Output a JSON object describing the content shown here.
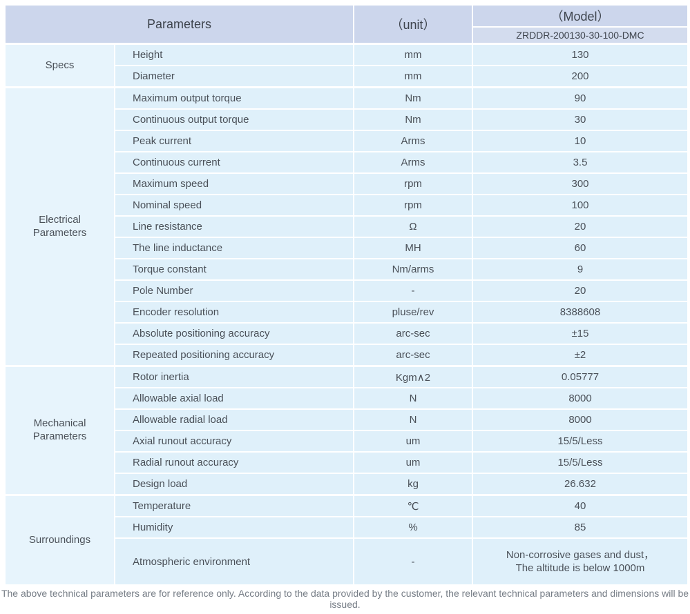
{
  "header": {
    "parameters_label": "Parameters",
    "unit_label": "（unit）",
    "model_label": "（Model）",
    "model_value": "ZRDDR-200130-30-100-DMC"
  },
  "sections": [
    {
      "group": "Specs",
      "rows": [
        {
          "parameter": "Height",
          "unit": "mm",
          "value": "130"
        },
        {
          "parameter": "Diameter",
          "unit": "mm",
          "value": "200"
        }
      ]
    },
    {
      "group": "Electrical Parameters",
      "rows": [
        {
          "parameter": "Maximum output torque",
          "unit": "Nm",
          "value": "90"
        },
        {
          "parameter": "Continuous output torque",
          "unit": "Nm",
          "value": "30"
        },
        {
          "parameter": "Peak current",
          "unit": "Arms",
          "value": "10"
        },
        {
          "parameter": "Continuous current",
          "unit": "Arms",
          "value": "3.5"
        },
        {
          "parameter": "Maximum speed",
          "unit": "rpm",
          "value": "300"
        },
        {
          "parameter": "Nominal speed",
          "unit": "rpm",
          "value": "100"
        },
        {
          "parameter": "Line resistance",
          "unit": "Ω",
          "value": "20"
        },
        {
          "parameter": "The line inductance",
          "unit": "MH",
          "value": "60"
        },
        {
          "parameter": "Torque constant",
          "unit": "Nm/arms",
          "value": "9"
        },
        {
          "parameter": "Pole Number",
          "unit": "-",
          "value": "20"
        },
        {
          "parameter": "Encoder resolution",
          "unit": "pluse/rev",
          "value": "8388608"
        },
        {
          "parameter": "Absolute positioning accuracy",
          "unit": "arc-sec",
          "value": "±15"
        },
        {
          "parameter": "Repeated positioning accuracy",
          "unit": "arc-sec",
          "value": "±2"
        }
      ]
    },
    {
      "group": "Mechanical Parameters",
      "rows": [
        {
          "parameter": "Rotor inertia",
          "unit": "Kgm∧2",
          "value": "0.05777"
        },
        {
          "parameter": "Allowable axial load",
          "unit": "N",
          "value": "8000"
        },
        {
          "parameter": "Allowable radial load",
          "unit": "N",
          "value": "8000"
        },
        {
          "parameter": "Axial runout accuracy",
          "unit": "um",
          "value": "15/5/Less"
        },
        {
          "parameter": "Radial runout accuracy",
          "unit": "um",
          "value": "15/5/Less"
        },
        {
          "parameter": "Design load",
          "unit": "kg",
          "value": "26.632"
        }
      ]
    },
    {
      "group": "Surroundings",
      "rows": [
        {
          "parameter": "Temperature",
          "unit": "℃",
          "value": "40"
        },
        {
          "parameter": "Humidity",
          "unit": "%",
          "value": "85"
        },
        {
          "parameter": "Atmospheric environment",
          "unit": "-",
          "value": "Non-corrosive gases and dust，\nThe altitude is below 1000m",
          "tall": true
        }
      ]
    }
  ],
  "footer": {
    "note": "The above technical parameters are for reference only. According to the data provided by the customer, the relevant technical parameters and dimensions will be issued."
  },
  "colors": {
    "header_bg": "#ccd6ec",
    "model_row_bg": "#d3dcee",
    "body_cell_bg": "#dff0fa",
    "group_cell_bg": "#e7f4fc",
    "text": "#4a5058",
    "footer_text": "#767d86",
    "divider": "#ffffff"
  }
}
